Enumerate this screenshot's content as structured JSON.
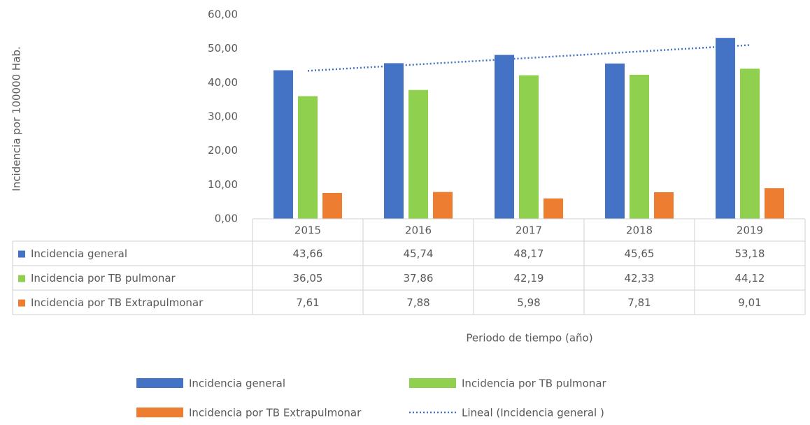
{
  "chart_data": {
    "type": "bar",
    "y_label": "Incidencia por 100000 Hab.",
    "x_label": "Periodo de tiempo (año)",
    "categories": [
      "2015",
      "2016",
      "2017",
      "2018",
      "2019"
    ],
    "series": [
      {
        "name": "Incidencia general",
        "color": "#4472c4",
        "values": [
          43.66,
          45.74,
          48.17,
          45.65,
          53.18
        ],
        "value_labels": [
          "43,66",
          "45,74",
          "48,17",
          "45,65",
          "53,18"
        ]
      },
      {
        "name": "Incidencia por TB pulmonar",
        "color": "#8fd14f",
        "values": [
          36.05,
          37.86,
          42.19,
          42.33,
          44.12
        ],
        "value_labels": [
          "36,05",
          "37,86",
          "42,19",
          "42,33",
          "44,12"
        ]
      },
      {
        "name": "Incidencia por TB Extrapulmonar",
        "color": "#ed7d31",
        "values": [
          7.61,
          7.88,
          5.98,
          7.81,
          9.01
        ],
        "value_labels": [
          "7,61",
          "7,88",
          "5,98",
          "7,81",
          "9,01"
        ]
      },
      {
        "name": "Lineal (Incidencia general )",
        "type": "line",
        "style": "dotted",
        "color": "#4472c4",
        "values": [
          43.49,
          45.39,
          47.28,
          49.18,
          51.07
        ]
      }
    ],
    "ylim": [
      0,
      60
    ],
    "yticks": [
      {
        "value": 0,
        "label": "0,00"
      },
      {
        "value": 10,
        "label": "10,00"
      },
      {
        "value": 20,
        "label": "20,00"
      },
      {
        "value": 30,
        "label": "30,00"
      },
      {
        "value": 40,
        "label": "40,00"
      },
      {
        "value": 50,
        "label": "50,00"
      },
      {
        "value": 60,
        "label": "60,00"
      }
    ],
    "grid": false,
    "legend": "bottom"
  }
}
